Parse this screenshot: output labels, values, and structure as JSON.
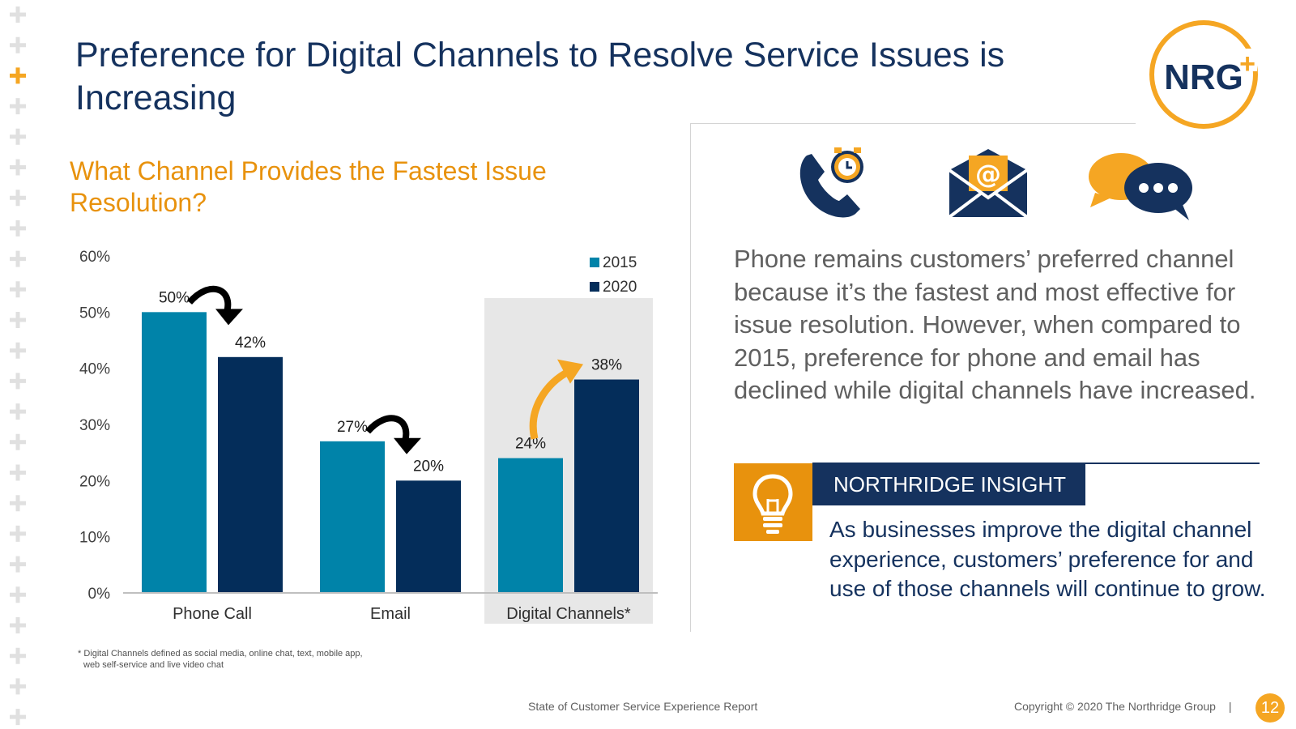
{
  "title": "Preference for Digital Channels to Resolve Service Issues is Increasing",
  "logo": {
    "text": "NRG",
    "plus": "+"
  },
  "chart_data": {
    "type": "bar",
    "title": "What Channel Provides the Fastest Issue Resolution?",
    "categories": [
      "Phone Call",
      "Email",
      "Digital Channels*"
    ],
    "series": [
      {
        "name": "2015",
        "values": [
          50,
          27,
          24
        ],
        "color": "#0083a9"
      },
      {
        "name": "2020",
        "values": [
          42,
          20,
          38
        ],
        "color": "#042d5a"
      }
    ],
    "data_labels": [
      [
        "50%",
        "27%",
        "24%"
      ],
      [
        "42%",
        "20%",
        "38%"
      ]
    ],
    "ylim": [
      0,
      60
    ],
    "yticks": [
      "0%",
      "10%",
      "20%",
      "30%",
      "40%",
      "50%",
      "60%"
    ],
    "legend_position": "top-right",
    "highlighted_category": "Digital Channels*",
    "trend_arrows": [
      "down",
      "down",
      "up"
    ],
    "grid": false
  },
  "footnote": {
    "line1": "* Digital Channels defined as social media, online chat, text, mobile app,",
    "line2": "web self-service and live video chat"
  },
  "icons": [
    "phone-clock-icon",
    "email-envelope-icon",
    "chat-bubbles-icon",
    "lightbulb-icon"
  ],
  "body_text": "Phone remains customers’ preferred channel because it’s the fastest and most effective for issue resolution. However, when compared to 2015, preference for phone and email has declined while digital channels have increased.",
  "insight": {
    "label": "NORTHRIDGE INSIGHT",
    "text": "As businesses improve the digital channel experience, customers’ preference for and use of those channels will continue to grow."
  },
  "footer": {
    "report": "State of Customer Service Experience Report",
    "copyright": "Copyright © 2020 The Northridge Group",
    "separator": "|",
    "page": "12"
  },
  "colors": {
    "navy": "#15325e",
    "orange": "#e8920d",
    "teal": "#0083a9",
    "dark_navy": "#042d5a",
    "gold": "#f5a623"
  }
}
